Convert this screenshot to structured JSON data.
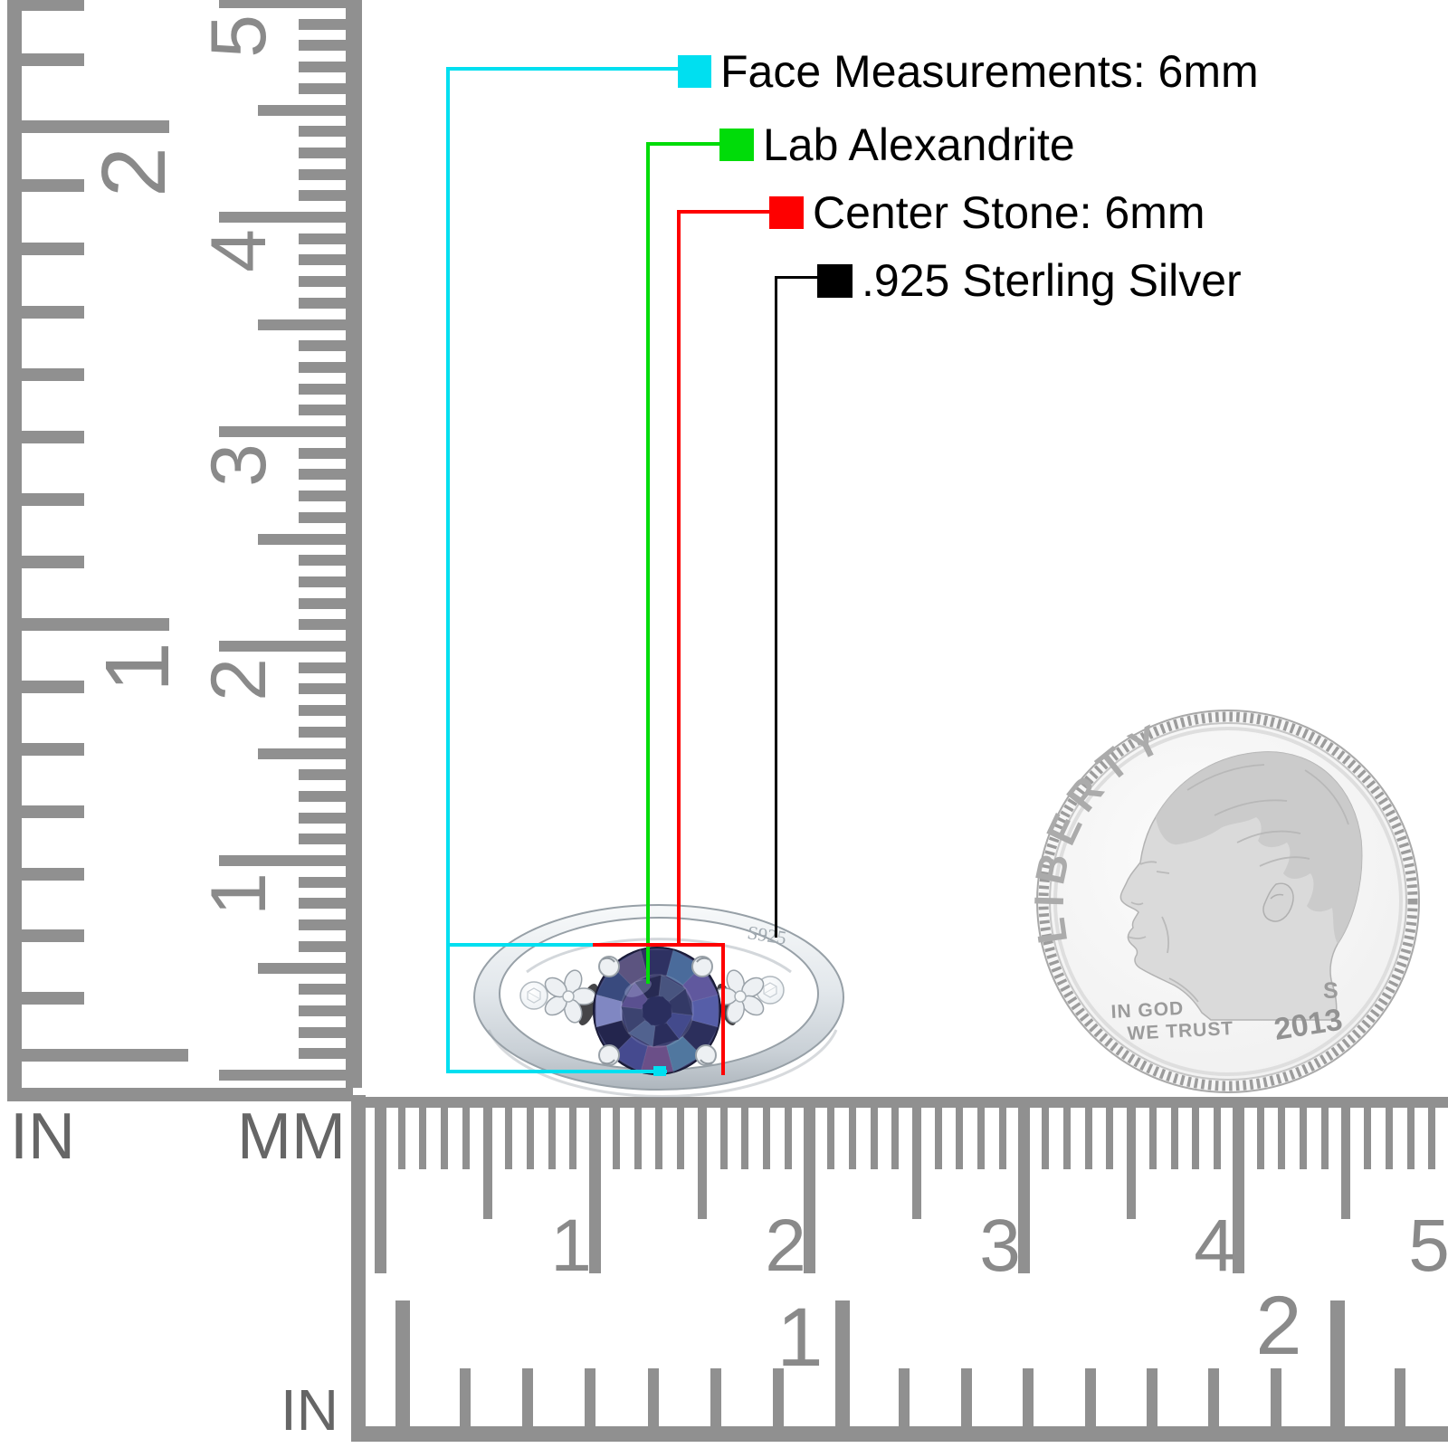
{
  "legend": {
    "items": [
      {
        "swatch_color": "#00dff0",
        "label": "Face Measurements: 6mm"
      },
      {
        "swatch_color": "#00dc09",
        "label": "Lab Alexandrite"
      },
      {
        "swatch_color": "#fe0000",
        "label": "Center Stone: 6mm"
      },
      {
        "swatch_color": "#000000",
        "label": ".925 Sterling Silver"
      }
    ]
  },
  "ring": {
    "engraving": "S925",
    "stone_base": "#3a3e70",
    "stone_center": "#2a2e5e",
    "stone_outer_palette": [
      "#565ea8",
      "#2c2f5c",
      "#50779f",
      "#6b4f88",
      "#454a8f",
      "#23254d",
      "#8087c2",
      "#394a7e",
      "#5c5480",
      "#2e3162",
      "#4a6b9b",
      "#60589e"
    ],
    "stone_inner_palette": [
      "#434a8c",
      "#2a2d5c",
      "#51628f",
      "#3c4370",
      "#5a5090",
      "#272a52",
      "#48547f",
      "#333966"
    ]
  },
  "coin": {
    "legend_text": "LIBERTY",
    "motto_line1": "IN GOD",
    "motto_line2": "WE TRUST",
    "mint_mark": "S",
    "year": "2013"
  },
  "rulers": {
    "tick_color": "#909090",
    "number_color": "#8a8a8a",
    "vertical_inch": {
      "unit": "IN",
      "numbers": [
        "2",
        "1"
      ]
    },
    "vertical_mm": {
      "unit": "MM",
      "numbers": [
        "5",
        "4",
        "3",
        "2",
        "1"
      ]
    },
    "horizontal_mm": {
      "numbers": [
        "1",
        "2",
        "3",
        "4",
        "5"
      ]
    },
    "horizontal_inch": {
      "unit": "IN",
      "numbers": [
        "1",
        "2"
      ]
    }
  }
}
